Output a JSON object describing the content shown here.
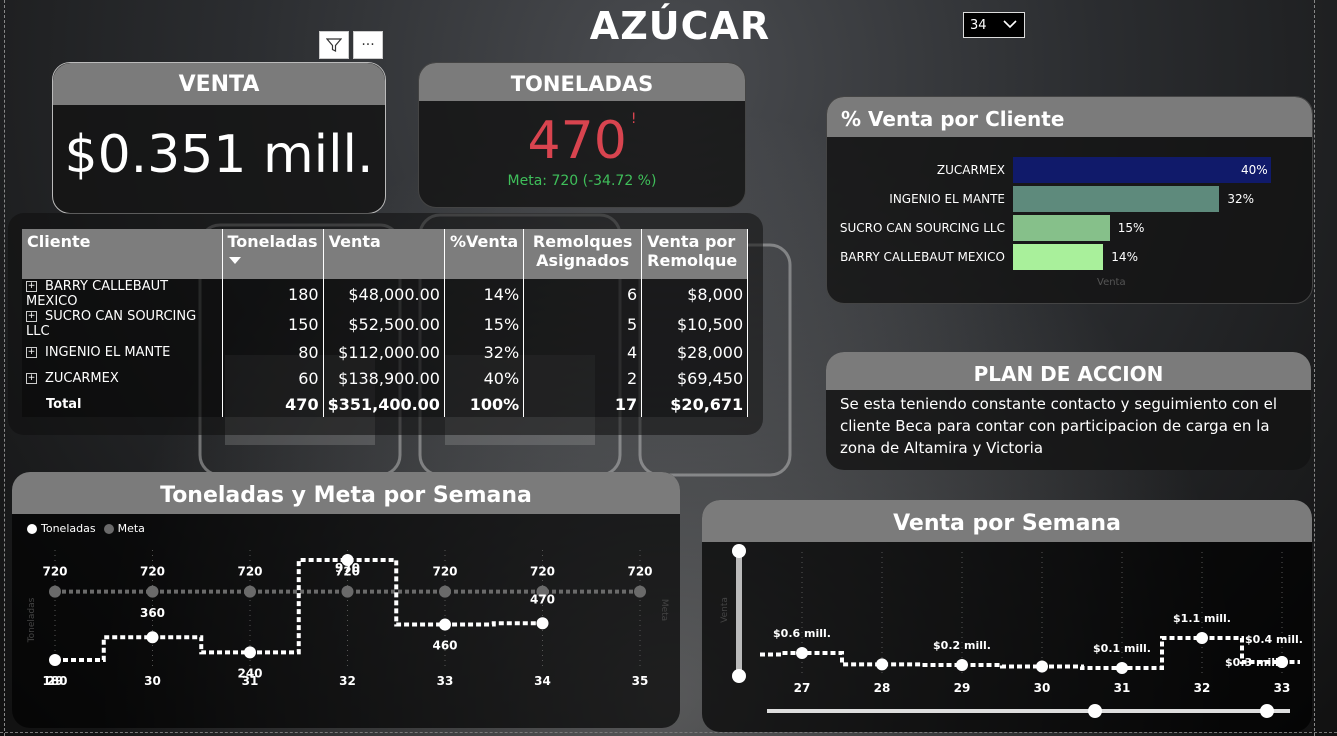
{
  "page": {
    "title": "AZÚCAR"
  },
  "week_select": {
    "value": "34",
    "icon": "chevron-down-icon"
  },
  "visual_tools": {
    "filter_icon": "filter-icon",
    "more_icon": "more-options-icon"
  },
  "kpi_venta": {
    "label": "VENTA",
    "value": "$0.351 mill."
  },
  "kpi_toneladas": {
    "label": "TONELADAS",
    "value": "470",
    "alert": "!",
    "meta": "Meta: 720 (-34.72 %)",
    "value_color": "#d8444f",
    "meta_color": "#3fbf5a"
  },
  "client_table": {
    "columns": [
      "Cliente",
      "Toneladas",
      "Venta",
      "%Venta",
      "Remolques Asignados",
      "Venta por Remolque"
    ],
    "sort_icon": "sort-desc-icon",
    "rows": [
      {
        "cliente": "BARRY CALLEBAUT MEXICO",
        "toneladas": "180",
        "venta": "$48,000.00",
        "pct": "14%",
        "remolques": "6",
        "venta_rem": "$8,000"
      },
      {
        "cliente": "SUCRO CAN SOURCING LLC",
        "toneladas": "150",
        "venta": "$52,500.00",
        "pct": "15%",
        "remolques": "5",
        "venta_rem": "$10,500"
      },
      {
        "cliente": "INGENIO EL MANTE",
        "toneladas": "80",
        "venta": "$112,000.00",
        "pct": "32%",
        "remolques": "4",
        "venta_rem": "$28,000"
      },
      {
        "cliente": "ZUCARMEX",
        "toneladas": "60",
        "venta": "$138,900.00",
        "pct": "40%",
        "remolques": "2",
        "venta_rem": "$69,450"
      }
    ],
    "total": {
      "cliente": "Total",
      "toneladas": "470",
      "venta": "$351,400.00",
      "pct": "100%",
      "remolques": "17",
      "venta_rem": "$20,671"
    }
  },
  "pct_chart": {
    "title": "% Venta por Cliente",
    "faint_label": "Venta",
    "bars": [
      {
        "name": "ZUCARMEX",
        "value": 40,
        "label": "40%",
        "color": "#101a6a"
      },
      {
        "name": "INGENIO EL MANTE",
        "value": 32,
        "label": "32%",
        "color": "#5e8a7c"
      },
      {
        "name": "SUCRO CAN SOURCING LLC",
        "value": 15,
        "label": "15%",
        "color": "#86c08a"
      },
      {
        "name": "BARRY CALLEBAUT MEXICO",
        "value": 14,
        "label": "14%",
        "color": "#a9f09b"
      }
    ]
  },
  "plan": {
    "title": "PLAN DE ACCION",
    "text": "Se esta teniendo constante contacto y seguimiento con el cliente Beca para contar con participacion de carga en la zona de Altamira y Victoria"
  },
  "chart_data": [
    {
      "type": "line",
      "title": "Toneladas y Meta por Semana",
      "xlabel": "",
      "ylabel": "Toneladas",
      "y2label": "Meta",
      "legend": "top-left",
      "grid": true,
      "categories": [
        "29",
        "30",
        "31",
        "32",
        "33",
        "34",
        "35"
      ],
      "series": [
        {
          "name": "Toneladas",
          "color": "#ffffff",
          "values": [
            180,
            360,
            240,
            970,
            460,
            470,
            null
          ],
          "labels": [
            "180",
            "360",
            "240",
            "970",
            "460",
            "470",
            ""
          ]
        },
        {
          "name": "Meta",
          "color": "#6a6a6a",
          "values": [
            720,
            720,
            720,
            720,
            720,
            720,
            720
          ],
          "labels": [
            "720",
            "720",
            "720",
            "720",
            "720",
            "720",
            "720"
          ]
        }
      ]
    },
    {
      "type": "line",
      "title": "Venta por Semana",
      "ylabel": "Venta",
      "grid": true,
      "categories": [
        "27",
        "28",
        "29",
        "30",
        "31",
        "32",
        "33"
      ],
      "series": [
        {
          "name": "Venta",
          "color": "#ffffff",
          "values": [
            0.6,
            0.22,
            0.2,
            0.15,
            0.1,
            1.1,
            0.3
          ],
          "labels": [
            "$0.6 mill.",
            "",
            "$0.2 mill.",
            "",
            "$0.1 mill.",
            "$1.1 mill.",
            "$0.3 mill."
          ]
        }
      ],
      "extra_label": "$0.4 mill."
    }
  ]
}
